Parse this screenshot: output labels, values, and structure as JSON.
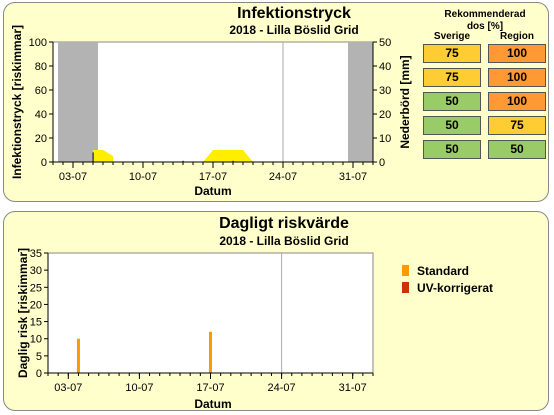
{
  "chart_data": [
    {
      "type": "area",
      "title": "Infektionstryck",
      "subtitle": "2018 - Lilla Böslid Grid",
      "xlabel": "Datum",
      "ylabel": "Infektionstryck [riskimmar]",
      "y2label": "Nederbörd [mm]",
      "x_ticks": [
        "03-07",
        "10-07",
        "17-07",
        "24-07",
        "31-07"
      ],
      "ylim": [
        0,
        100
      ],
      "y_ticks": [
        0,
        20,
        40,
        60,
        80,
        100
      ],
      "y2lim": [
        0,
        50
      ],
      "y2_ticks": [
        0,
        10,
        20,
        30,
        40,
        50
      ],
      "grid": false,
      "x_day_range": [
        1,
        33
      ],
      "excluded_day_ranges": [
        [
          1.5,
          5.5
        ],
        [
          30.5,
          33
        ]
      ],
      "today_marker_day": 24,
      "series": [
        {
          "color": "#ffee00",
          "points": [
            [
              5,
              0
            ],
            [
              5,
              10
            ],
            [
              6,
              10
            ],
            [
              7,
              5
            ],
            [
              7,
              0
            ],
            [
              16,
              0
            ],
            [
              17,
              10
            ],
            [
              20,
              10
            ],
            [
              21,
              0
            ]
          ]
        }
      ],
      "precip_bars": [
        {
          "day": 5,
          "mm": 4
        },
        {
          "day": 14,
          "mm": 0.5
        },
        {
          "day": 19,
          "mm": 0.5
        }
      ],
      "precip_color": "#222222"
    },
    {
      "type": "bar",
      "title": "Dagligt riskvärde",
      "subtitle": "2018 - Lilla Böslid Grid",
      "xlabel": "Datum",
      "ylabel": "Daglig risk [riskimmar]",
      "x_ticks": [
        "03-07",
        "10-07",
        "17-07",
        "24-07",
        "31-07"
      ],
      "ylim": [
        0,
        35
      ],
      "y_ticks": [
        0,
        5,
        10,
        15,
        20,
        25,
        30,
        35
      ],
      "grid": false,
      "x_day_range": [
        1,
        33
      ],
      "today_marker_day": 24,
      "legend_position": "right",
      "series": [
        {
          "name": "Standard",
          "color": "#ff9900",
          "points": [
            [
              4,
              10
            ],
            [
              17,
              12
            ]
          ]
        },
        {
          "name": "UV-korrigerat",
          "color": "#cc3300",
          "points": []
        }
      ]
    }
  ],
  "recommendation": {
    "title_line1": "Rekommenderad",
    "title_line2": "dos  [%]",
    "col_sverige": "Sverige",
    "col_region": "Region",
    "rows": [
      {
        "sverige": "75",
        "sverige_color": "#ffcc33",
        "region": "100",
        "region_color": "#ff9933"
      },
      {
        "sverige": "75",
        "sverige_color": "#ffcc33",
        "region": "100",
        "region_color": "#ff9933"
      },
      {
        "sverige": "50",
        "sverige_color": "#99cc66",
        "region": "100",
        "region_color": "#ff9933"
      },
      {
        "sverige": "50",
        "sverige_color": "#99cc66",
        "region": "75",
        "region_color": "#ffcc33"
      },
      {
        "sverige": "50",
        "sverige_color": "#99cc66",
        "region": "50",
        "region_color": "#99cc66"
      }
    ]
  }
}
